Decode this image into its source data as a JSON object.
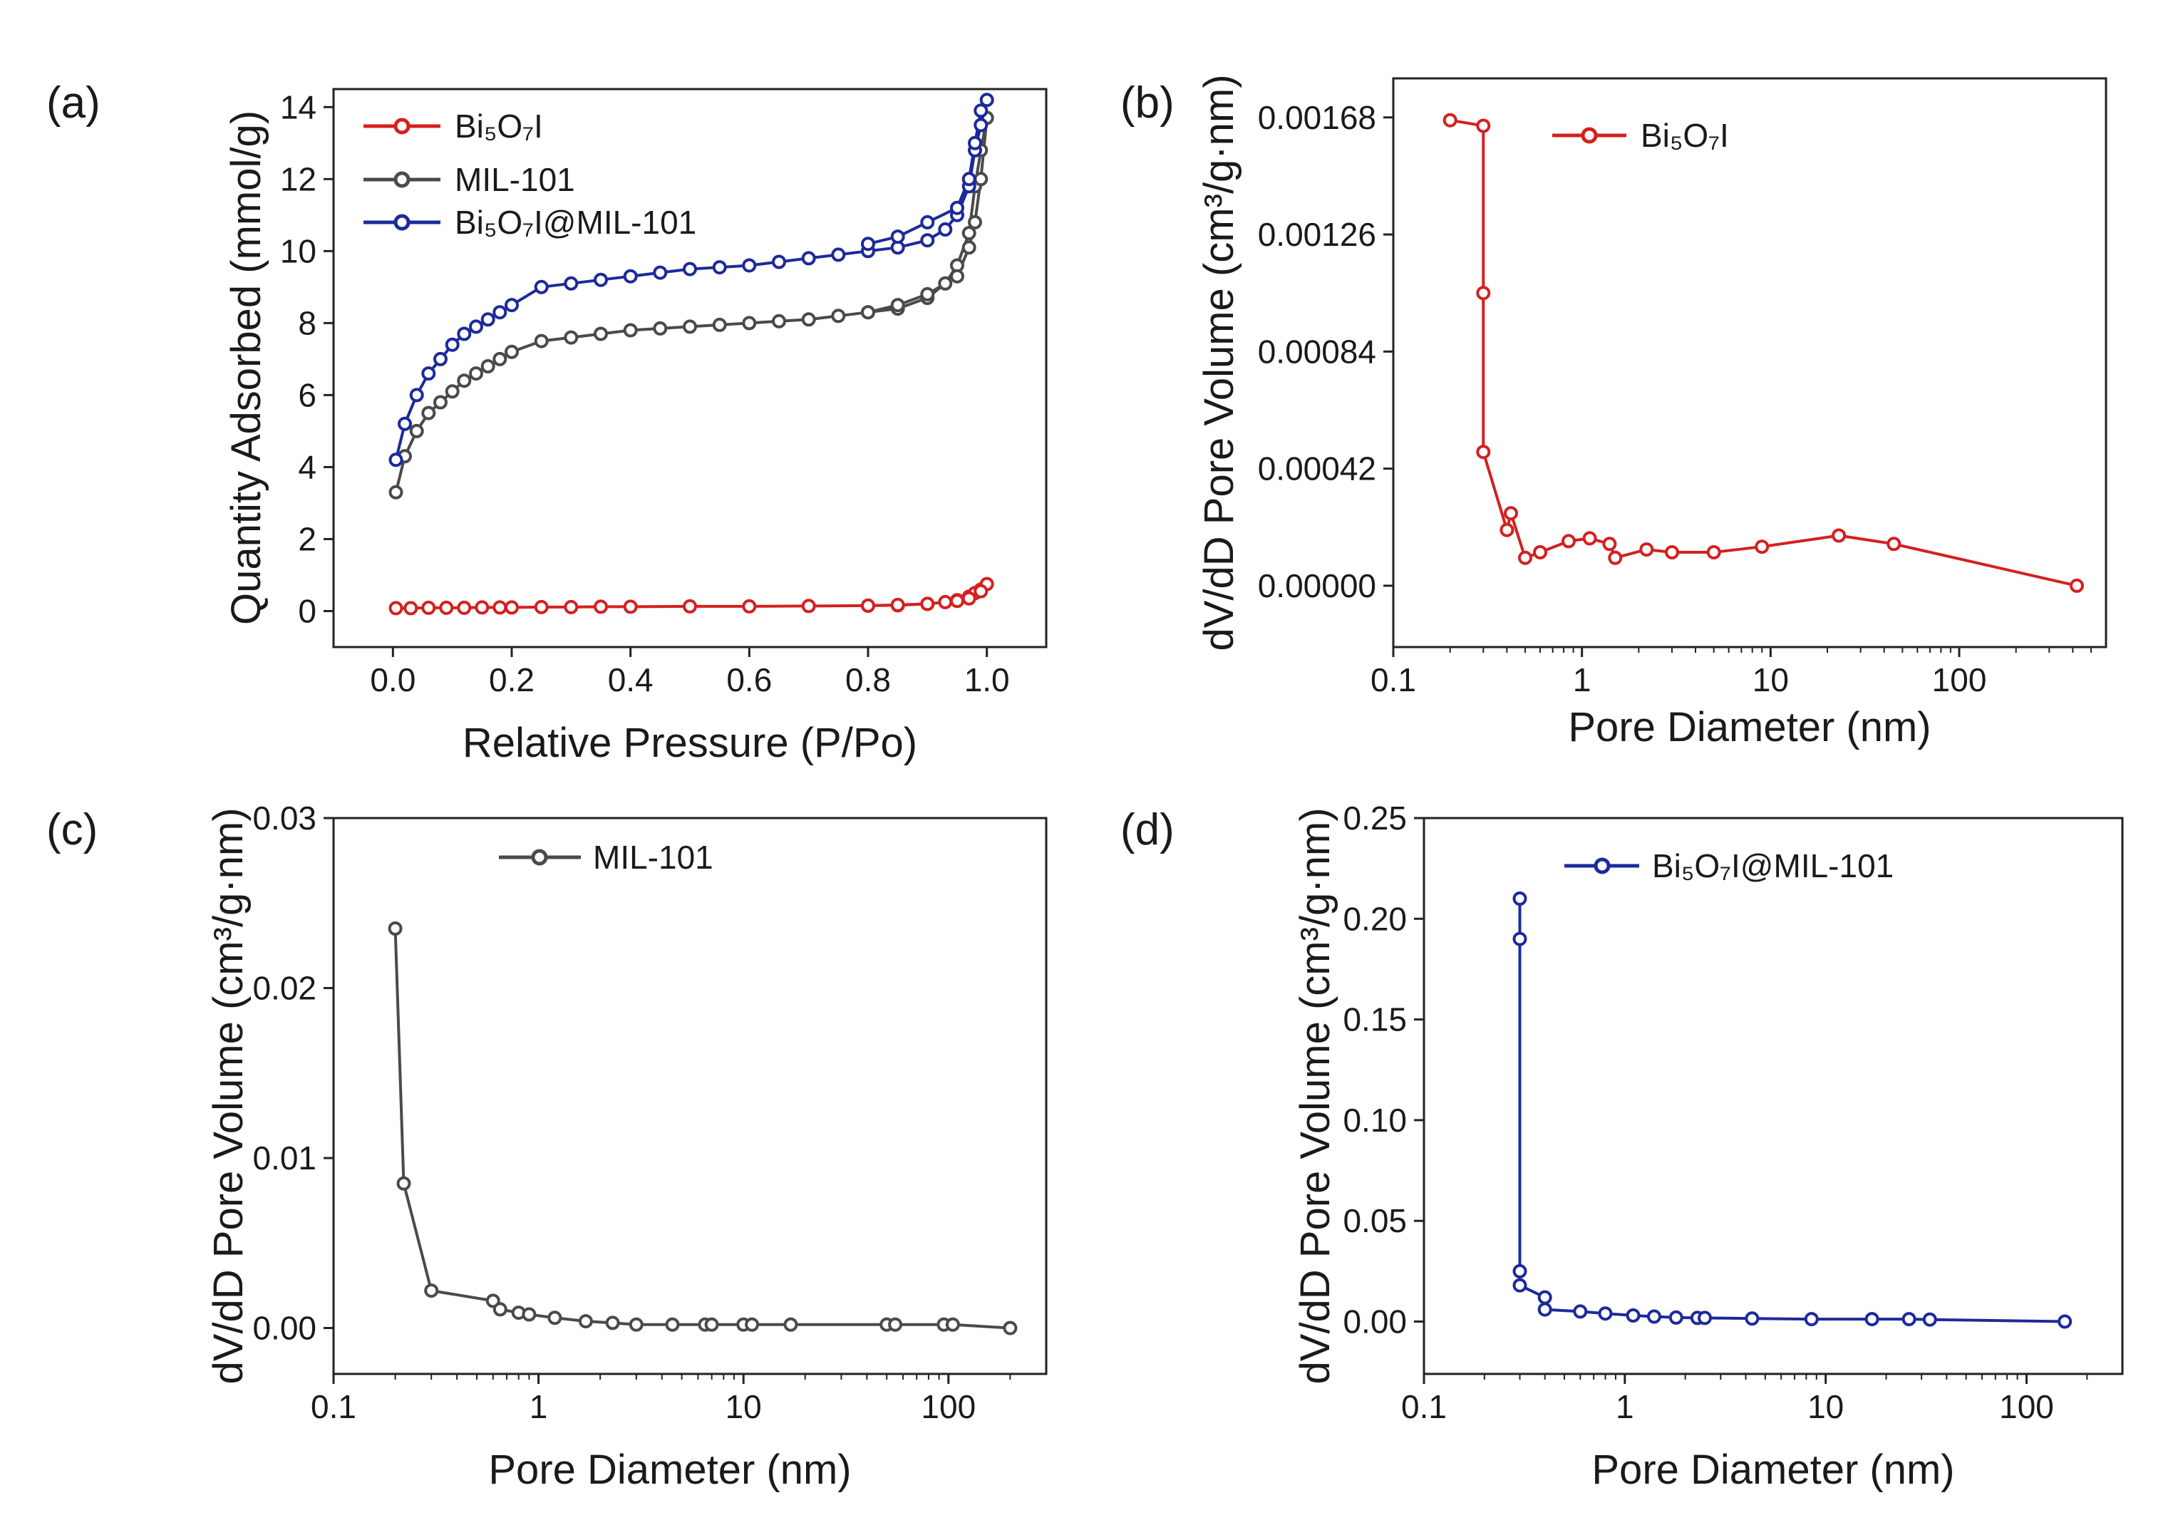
{
  "colors": {
    "red": "#d42020",
    "gray": "#4a4a4a",
    "blue": "#1c2a9a"
  },
  "chart_data": [
    {
      "panel": "(a)",
      "type": "line",
      "xlabel": "Relative Pressure (P/Po)",
      "ylabel": "Quantity Adsorbed (mmol/g)",
      "xlim": [
        -0.1,
        1.1
      ],
      "ylim": [
        -1,
        14.5
      ],
      "xticks": [
        0.0,
        0.2,
        0.4,
        0.6,
        0.8,
        1.0
      ],
      "xtick_labels": [
        "0.0",
        "0.2",
        "0.4",
        "0.6",
        "0.8",
        "1.0"
      ],
      "yticks": [
        0,
        2,
        4,
        6,
        8,
        10,
        12,
        14
      ],
      "ytick_labels": [
        "0",
        "2",
        "4",
        "6",
        "8",
        "10",
        "12",
        "14"
      ],
      "legend_position": "top-left",
      "series": [
        {
          "name": "Bi₅O₇I",
          "color": "#d42020",
          "x": [
            0.005,
            0.03,
            0.06,
            0.09,
            0.12,
            0.15,
            0.18,
            0.2,
            0.25,
            0.3,
            0.35,
            0.4,
            0.5,
            0.6,
            0.7,
            0.8,
            0.85,
            0.9,
            0.93,
            0.95,
            0.97,
            0.98,
            0.99,
            1.0,
            0.99,
            0.97,
            0.95,
            0.9,
            0.85,
            0.8
          ],
          "y": [
            0.08,
            0.08,
            0.09,
            0.09,
            0.09,
            0.1,
            0.1,
            0.1,
            0.11,
            0.11,
            0.12,
            0.12,
            0.13,
            0.13,
            0.14,
            0.15,
            0.16,
            0.2,
            0.25,
            0.3,
            0.4,
            0.5,
            0.6,
            0.75,
            0.55,
            0.35,
            0.28,
            0.2,
            0.17,
            0.15
          ]
        },
        {
          "name": "MIL-101",
          "color": "#4a4a4a",
          "x": [
            0.005,
            0.02,
            0.04,
            0.06,
            0.08,
            0.1,
            0.12,
            0.14,
            0.16,
            0.18,
            0.2,
            0.25,
            0.3,
            0.35,
            0.4,
            0.45,
            0.5,
            0.55,
            0.6,
            0.65,
            0.7,
            0.75,
            0.8,
            0.85,
            0.9,
            0.93,
            0.95,
            0.97,
            0.98,
            0.99,
            1.0,
            0.99,
            0.98,
            0.97,
            0.95,
            0.9,
            0.85,
            0.8
          ],
          "y": [
            3.3,
            4.3,
            5.0,
            5.5,
            5.8,
            6.1,
            6.4,
            6.6,
            6.8,
            7.0,
            7.2,
            7.5,
            7.6,
            7.7,
            7.8,
            7.85,
            7.9,
            7.95,
            8.0,
            8.05,
            8.1,
            8.2,
            8.3,
            8.4,
            8.7,
            9.1,
            9.6,
            10.5,
            11.8,
            12.8,
            13.7,
            12.0,
            10.8,
            10.1,
            9.3,
            8.8,
            8.5,
            8.3
          ]
        },
        {
          "name": "Bi₅O₇I@MIL-101",
          "color": "#1c2a9a",
          "x": [
            0.005,
            0.02,
            0.04,
            0.06,
            0.08,
            0.1,
            0.12,
            0.14,
            0.16,
            0.18,
            0.2,
            0.25,
            0.3,
            0.35,
            0.4,
            0.45,
            0.5,
            0.55,
            0.6,
            0.65,
            0.7,
            0.75,
            0.8,
            0.85,
            0.9,
            0.93,
            0.95,
            0.97,
            0.98,
            0.99,
            1.0,
            0.99,
            0.98,
            0.97,
            0.95,
            0.9,
            0.85,
            0.8
          ],
          "y": [
            4.2,
            5.2,
            6.0,
            6.6,
            7.0,
            7.4,
            7.7,
            7.9,
            8.1,
            8.3,
            8.5,
            9.0,
            9.1,
            9.2,
            9.3,
            9.4,
            9.5,
            9.55,
            9.6,
            9.7,
            9.8,
            9.9,
            10.0,
            10.1,
            10.3,
            10.6,
            11.0,
            11.8,
            12.8,
            13.5,
            14.2,
            13.9,
            13.0,
            12.0,
            11.2,
            10.8,
            10.4,
            10.2
          ]
        }
      ]
    },
    {
      "panel": "(b)",
      "type": "line",
      "xscale": "log",
      "xlabel": "Pore Diameter (nm)",
      "ylabel": "dV/dD Pore Volume (cm³/g·nm)",
      "xlim": [
        0.1,
        600
      ],
      "ylim": [
        -0.00022,
        0.00182
      ],
      "xticks": [
        0.1,
        1,
        10,
        100
      ],
      "xtick_labels": [
        "0.1",
        "1",
        "10",
        "100"
      ],
      "yticks": [
        0,
        0.00042,
        0.00084,
        0.00126,
        0.00168
      ],
      "ytick_labels": [
        "0.00000",
        "0.00042",
        "0.00084",
        "0.00126",
        "0.00168"
      ],
      "legend_position": "top-center",
      "series": [
        {
          "name": "Bi₅O₇I",
          "color": "#d42020",
          "x": [
            0.2,
            0.3,
            0.3,
            0.3,
            0.4,
            0.42,
            0.5,
            0.6,
            0.85,
            1.1,
            1.4,
            1.5,
            2.2,
            3.0,
            5.0,
            9.0,
            23.0,
            45.0,
            420.0
          ],
          "y": [
            0.00167,
            0.00165,
            0.00105,
            0.00048,
            0.0002,
            0.00026,
            0.0001,
            0.00012,
            0.00016,
            0.00017,
            0.00015,
            0.0001,
            0.00013,
            0.00012,
            0.00012,
            0.00014,
            0.00018,
            0.00015,
            0.0
          ]
        }
      ]
    },
    {
      "panel": "(c)",
      "type": "line",
      "xscale": "log",
      "xlabel": "Pore Diameter (nm)",
      "ylabel": "dV/dD Pore Volume (cm³/g·nm)",
      "xlim": [
        0.1,
        300
      ],
      "ylim": [
        -0.0027,
        0.03
      ],
      "xticks": [
        0.1,
        1,
        10,
        100
      ],
      "xtick_labels": [
        "0.1",
        "1",
        "10",
        "100"
      ],
      "yticks": [
        0,
        0.01,
        0.02,
        0.03
      ],
      "ytick_labels": [
        "0.00",
        "0.01",
        "0.02",
        "0.03"
      ],
      "legend_position": "top-center",
      "series": [
        {
          "name": "MIL-101",
          "color": "#4a4a4a",
          "x": [
            0.2,
            0.22,
            0.3,
            0.6,
            0.65,
            0.8,
            0.9,
            1.2,
            1.7,
            2.3,
            3.0,
            4.5,
            6.5,
            7.0,
            10.0,
            11.0,
            17.0,
            50.0,
            55.0,
            95.0,
            105.0,
            200.0
          ],
          "y": [
            0.0235,
            0.0085,
            0.0022,
            0.0016,
            0.0011,
            0.0009,
            0.0008,
            0.0006,
            0.0004,
            0.0003,
            0.0002,
            0.0002,
            0.0002,
            0.0002,
            0.0002,
            0.0002,
            0.0002,
            0.0002,
            0.0002,
            0.0002,
            0.0002,
            0.0
          ]
        }
      ]
    },
    {
      "panel": "(d)",
      "type": "line",
      "xscale": "log",
      "xlabel": "Pore Diameter (nm)",
      "ylabel": "dV/dD Pore Volume (cm³/g·nm)",
      "xlim": [
        0.1,
        300
      ],
      "ylim": [
        -0.026,
        0.25
      ],
      "xticks": [
        0.1,
        1,
        10,
        100
      ],
      "xtick_labels": [
        "0.1",
        "1",
        "10",
        "100"
      ],
      "yticks": [
        0,
        0.05,
        0.1,
        0.15,
        0.2,
        0.25
      ],
      "ytick_labels": [
        "0.00",
        "0.05",
        "0.10",
        "0.15",
        "0.20",
        "0.25"
      ],
      "legend_position": "top-center",
      "series": [
        {
          "name": "Bi₅O₇I@MIL-101",
          "color": "#1c2a9a",
          "x": [
            0.3,
            0.3,
            0.3,
            0.3,
            0.4,
            0.4,
            0.6,
            0.8,
            1.1,
            1.4,
            1.8,
            2.3,
            2.5,
            4.3,
            8.5,
            17.0,
            26.0,
            33.0,
            155.0
          ],
          "y": [
            0.21,
            0.19,
            0.025,
            0.018,
            0.012,
            0.006,
            0.005,
            0.004,
            0.003,
            0.0025,
            0.002,
            0.0018,
            0.0018,
            0.0015,
            0.0012,
            0.0012,
            0.0012,
            0.001,
            0.0
          ]
        }
      ]
    }
  ]
}
